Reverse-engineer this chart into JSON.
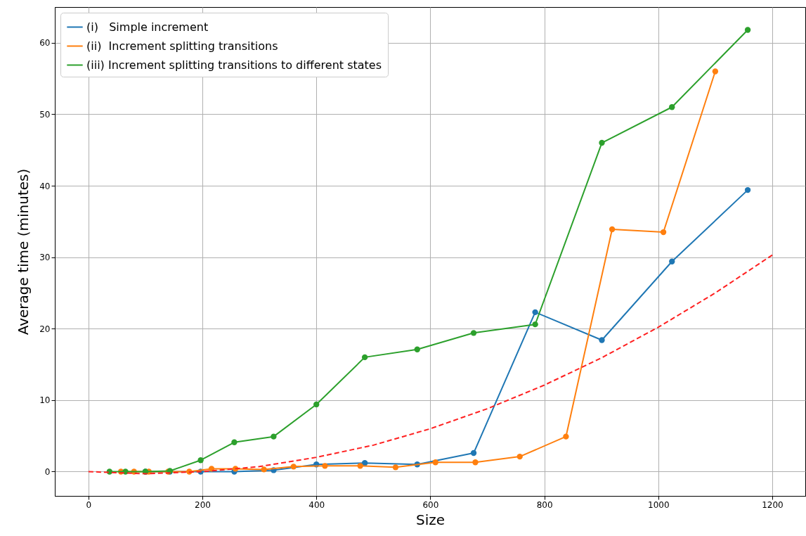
{
  "chart_data": {
    "type": "line",
    "xlabel": "Size",
    "ylabel": "Average time (minutes)",
    "xlim": [
      -59,
      1258
    ],
    "ylim": [
      -3.4,
      65
    ],
    "xticks": [
      0,
      200,
      400,
      600,
      800,
      1000,
      1200
    ],
    "yticks": [
      0,
      10,
      20,
      30,
      40,
      50,
      60
    ],
    "grid": true,
    "legend": "top left",
    "marker": "circle",
    "series": [
      {
        "name": "(i)   Simple increment",
        "color": "#1f77b4",
        "x": [
          100,
          143,
          197,
          256,
          325,
          400,
          485,
          577,
          676,
          784,
          901,
          1024,
          1157
        ],
        "values": [
          0,
          0,
          0,
          0,
          0.2,
          1.0,
          1.2,
          1.0,
          2.6,
          22.3,
          18.4,
          29.4,
          39.4
        ]
      },
      {
        "name": "(ii)  Increment splitting transitions",
        "color": "#ff7f0e",
        "x": [
          57,
          80,
          106,
          140,
          177,
          216,
          258,
          308,
          360,
          415,
          477,
          539,
          609,
          679,
          757,
          838,
          919,
          1009,
          1100
        ],
        "values": [
          0,
          0,
          0,
          0,
          0,
          0.4,
          0.4,
          0.3,
          0.7,
          0.8,
          0.8,
          0.6,
          1.3,
          1.3,
          2.1,
          4.9,
          33.9,
          33.5,
          56.0
        ]
      },
      {
        "name": "(iii) Increment splitting transitions to different states",
        "color": "#2ca02c",
        "x": [
          37,
          65,
          100,
          143,
          197,
          256,
          325,
          400,
          485,
          577,
          676,
          784,
          901,
          1024,
          1157
        ],
        "values": [
          0,
          0,
          0,
          0.1,
          1.6,
          4.1,
          4.9,
          9.4,
          16.0,
          17.1,
          19.4,
          20.6,
          46.0,
          51.0,
          61.8
        ]
      },
      {
        "type": "line",
        "color": "#ff2020",
        "marker": "none",
        "line_style": "dashed",
        "x": [
          0,
          100,
          200,
          300,
          400,
          500,
          600,
          700,
          800,
          900,
          1000,
          1100,
          1200
        ],
        "values": [
          0,
          -0.3,
          0,
          0.7,
          2.0,
          3.7,
          6.0,
          8.8,
          12.1,
          15.9,
          20.2,
          25.0,
          30.3
        ]
      }
    ]
  }
}
